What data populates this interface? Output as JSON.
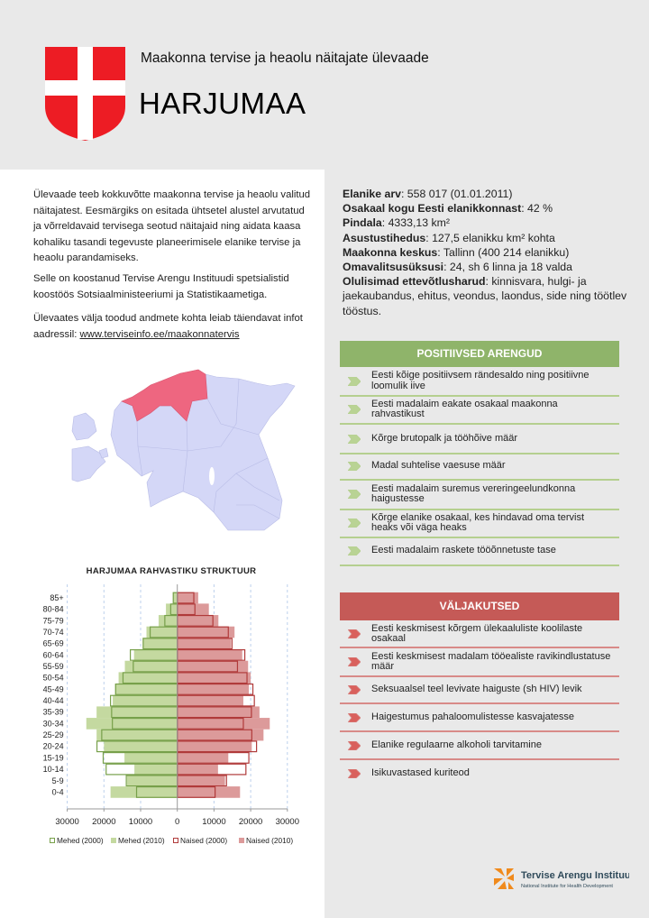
{
  "header": {
    "subtitle": "Maakonna tervise ja heaolu näitajate ülevaade",
    "title": "HARJUMAA",
    "coat_of_arms_colors": {
      "field": "#ed1c24",
      "cross": "#ffffff"
    }
  },
  "intro": {
    "paragraph1": "Ülevaade teeb kokkuvõtte maakonna tervise ja heaolu valitud näitajatest. Eesmärgiks on esitada ühtsetel alustel arvutatud ja võrreldavaid tervisega seotud näitajaid ning aidata kaasa kohaliku tasandi tegevuste planeerimisele elanike tervise ja heaolu parandamiseks.",
    "paragraph2": "Selle on koostanud Tervise Arengu Instituudi spetsialistid koostöös Sotsiaalministeeriumi ja Statistikaametiga.",
    "paragraph3_prefix": "Ülevaates välja toodud andmete kohta leiab täiendavat infot aadressil: ",
    "link": "www.terviseinfo.ee/maakonnatervis"
  },
  "stats": [
    {
      "label": "Elanike arv",
      "value": ": 558 017 (01.01.2011)"
    },
    {
      "label": "Osakaal kogu Eesti elanikkonnast",
      "value": ": 42 %"
    },
    {
      "label": "Pindala",
      "value": ": 4333,13 km²"
    },
    {
      "label": "Asustustihedus",
      "value": ": 127,5 elanikku km² kohta"
    },
    {
      "label": "Maakonna keskus",
      "value": ": Tallinn (400 214 elanikku)"
    },
    {
      "label": "Omavalitsusüksusi",
      "value": ": 24, sh 6 linna ja 18 valda"
    },
    {
      "label": "Olulisimad ettevõtlusharud",
      "value": ": kinnisvara, hulgi- ja jaekaubandus, ehitus, veondus, laondus, side ning töötlev tööstus."
    }
  ],
  "map": {
    "highlight_color": "#ee6680",
    "other_color": "#d4d7f7"
  },
  "positive": {
    "heading": "POSITIIVSED ARENGUD",
    "color": "#8fb46a",
    "items": [
      "Eesti kõige positiivsem rändesaldo ning positiivne loomulik iive",
      "Eesti madalaim eakate osakaal maakonna rahvastikust",
      "Kõrge brutopalk ja tööhõive määr",
      "Madal suhtelise vaesuse määr",
      "Eesti madalaim suremus vereringeelundkonna haigustesse",
      "Kõrge elanike osakaal, kes hindavad oma tervist heaks või väga heaks",
      "Eesti madalaim raskete tööõnnetuste tase"
    ]
  },
  "challenges": {
    "heading": "VÄLJAKUTSED",
    "color": "#c55a57",
    "items": [
      "Eesti keskmisest kõrgem ülekaaluliste koolilaste osakaal",
      "Eesti keskmisest madalam tööealiste ravikindlustatuse määr",
      "Seksuaalsel teel levivate haiguste (sh HIV) levik",
      "Haigestumus pahaloomulistesse kasvajatesse",
      "Elanike regulaarne alkoholi tarvitamine",
      "Isikuvastased kuriteod"
    ]
  },
  "chart_data": {
    "type": "bar",
    "orientation": "horizontal population pyramid",
    "title": "HARJUMAA RAHVASTIKU STRUKTUUR",
    "categories": [
      "85+",
      "80-84",
      "75-79",
      "70-74",
      "65-69",
      "60-64",
      "55-59",
      "50-54",
      "45-49",
      "40-44",
      "35-39",
      "30-34",
      "25-29",
      "20-24",
      "15-19",
      "10-14",
      "5-9",
      "0-4"
    ],
    "xlim": [
      -30000,
      30000
    ],
    "x_tick_labels": [
      "30000",
      "20000",
      "10000",
      "0",
      "10000",
      "20000",
      "30000"
    ],
    "grid": "vertical dashed",
    "legend_position": "bottom",
    "series": [
      {
        "name": "Mehed (2000)",
        "style": "outline",
        "color": "#77a04a",
        "values": [
          1100,
          1800,
          3400,
          7400,
          9300,
          12800,
          12000,
          14800,
          16800,
          18200,
          17900,
          17700,
          20600,
          21900,
          20200,
          19400,
          13900,
          11100
        ]
      },
      {
        "name": "Mehed (2010)",
        "style": "fill",
        "color": "#c4d9a0",
        "values": [
          1200,
          3100,
          5100,
          8400,
          9400,
          11800,
          14300,
          16000,
          17000,
          17600,
          22000,
          24800,
          22000,
          20000,
          14400,
          11700,
          13700,
          18200
        ]
      },
      {
        "name": "Naised (2000)",
        "style": "outline",
        "color": "#b03a3a",
        "values": [
          4500,
          4800,
          9700,
          13900,
          14900,
          18400,
          16400,
          19000,
          20600,
          21000,
          20200,
          18000,
          20300,
          21600,
          19500,
          18700,
          13400,
          10300
        ]
      },
      {
        "name": "Naised (2010)",
        "style": "fill",
        "color": "#dc9a9a",
        "values": [
          5700,
          8600,
          11200,
          15600,
          14600,
          17700,
          19300,
          20000,
          19500,
          18000,
          22400,
          25200,
          23500,
          20300,
          13900,
          11100,
          13000,
          17100
        ]
      }
    ]
  },
  "logo": {
    "name": "Tervise Arengu Instituut",
    "tagline": "National Institute for Health Development",
    "color": "#f08a1c"
  }
}
